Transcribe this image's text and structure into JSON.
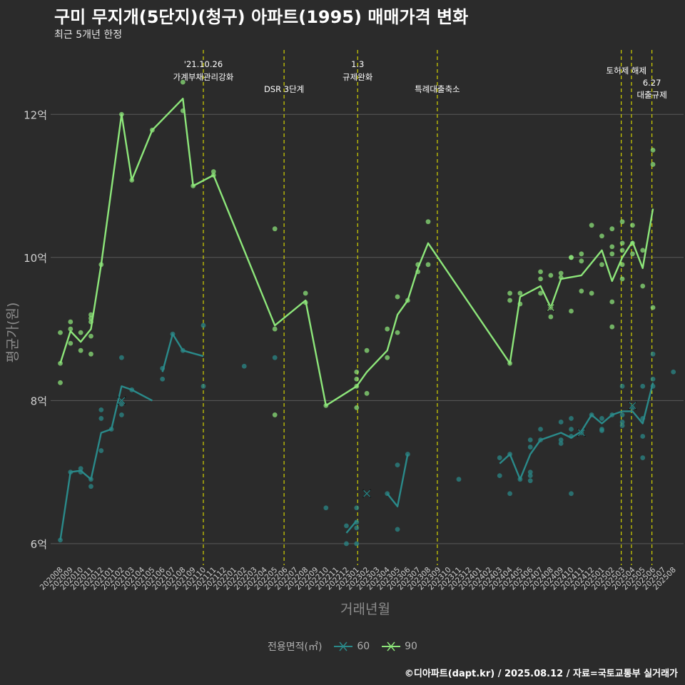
{
  "title": "구미 무지개(5단지)(청구) 아파트(1995) 매매가격 변화",
  "subtitle": "최근 5개년 한정",
  "caption": "©디아파트(dapt.kr) / 2025.08.12 / 자료=국토교통부 실거래가",
  "colors": {
    "background": "#2b2b2b",
    "grid": "#5a5a5a",
    "event": "#d4d400",
    "s60": "#2a8a8a",
    "s90": "#8de67a"
  },
  "chart_data": {
    "type": "line",
    "xlabel": "거래년월",
    "ylabel": "평균가(원)",
    "ylim": [
      5.7,
      12.9
    ],
    "yticks": [
      6,
      8,
      10,
      12
    ],
    "ytick_labels": [
      "6억",
      "8억",
      "10억",
      "12억"
    ],
    "x": [
      "202008",
      "202009",
      "202010",
      "202011",
      "202012",
      "202101",
      "202102",
      "202103",
      "202104",
      "202105",
      "202106",
      "202107",
      "202108",
      "202109",
      "202110",
      "202111",
      "202112",
      "202201",
      "202202",
      "202203",
      "202204",
      "202205",
      "202206",
      "202207",
      "202208",
      "202209",
      "202210",
      "202211",
      "202212",
      "202301",
      "202302",
      "202303",
      "202304",
      "202305",
      "202306",
      "202307",
      "202308",
      "202309",
      "202310",
      "202311",
      "202312",
      "202401",
      "202402",
      "202403",
      "202404",
      "202405",
      "202406",
      "202407",
      "202408",
      "202409",
      "202410",
      "202411",
      "202412",
      "202501",
      "202502",
      "202503",
      "202504",
      "202505",
      "202506",
      "202507",
      "202508"
    ],
    "legend_title": "전용면적(㎡)",
    "events": [
      {
        "x": 14,
        "lines": [
          "'21.10.26",
          "가계부채관리강화"
        ]
      },
      {
        "x": 21.9,
        "lines": [
          "DSR 3단계"
        ]
      },
      {
        "x": 29.1,
        "lines": [
          "1.3",
          "규제완화"
        ]
      },
      {
        "x": 36.9,
        "lines": [
          "특례대출축소"
        ]
      },
      {
        "x": 54.9,
        "lines": [
          "토허제 해제"
        ]
      },
      {
        "x": 55.9,
        "lines": []
      },
      {
        "x": 57.9,
        "lines": [
          "6.27",
          "대출규제"
        ]
      }
    ],
    "series": [
      {
        "name": "60",
        "segments": [
          [
            [
              0,
              6.05
            ],
            [
              1,
              7.0
            ],
            [
              2,
              7.02
            ],
            [
              3,
              6.9
            ],
            [
              4,
              7.55
            ],
            [
              5,
              7.6
            ],
            [
              6,
              8.2
            ],
            [
              7,
              8.15
            ],
            [
              9,
              8.0
            ]
          ],
          [
            [
              10,
              8.4
            ],
            [
              11,
              8.93
            ],
            [
              12,
              8.7
            ],
            [
              14,
              8.62
            ]
          ],
          [
            [
              28,
              6.15
            ],
            [
              29,
              6.32
            ]
          ],
          [
            [
              32,
              6.7
            ],
            [
              33,
              6.52
            ],
            [
              34,
              7.25
            ]
          ],
          [
            [
              43,
              7.12
            ],
            [
              44,
              7.25
            ],
            [
              45,
              6.9
            ],
            [
              46,
              7.25
            ],
            [
              47,
              7.45
            ],
            [
              49,
              7.55
            ],
            [
              50,
              7.48
            ],
            [
              51,
              7.57
            ],
            [
              52,
              7.8
            ],
            [
              53,
              7.68
            ],
            [
              54,
              7.8
            ],
            [
              55,
              7.85
            ],
            [
              56,
              7.85
            ],
            [
              57,
              7.68
            ],
            [
              58,
              8.25
            ]
          ]
        ],
        "points": [
          [
            0,
            6.05
          ],
          [
            1,
            7.0
          ],
          [
            2,
            7.0
          ],
          [
            2,
            7.05
          ],
          [
            3,
            6.9
          ],
          [
            3,
            6.8
          ],
          [
            4,
            7.3
          ],
          [
            4,
            7.75
          ],
          [
            4,
            7.87
          ],
          [
            5,
            7.6
          ],
          [
            6,
            7.8
          ],
          [
            6,
            7.95
          ],
          [
            6,
            8.6
          ],
          [
            7,
            8.15
          ],
          [
            10,
            8.3
          ],
          [
            10,
            8.45
          ],
          [
            11,
            8.93
          ],
          [
            12,
            8.7
          ],
          [
            14,
            9.05
          ],
          [
            14,
            8.2
          ],
          [
            18,
            8.48
          ],
          [
            21,
            8.6
          ],
          [
            26,
            6.5
          ],
          [
            28,
            6.0
          ],
          [
            28,
            6.25
          ],
          [
            29,
            6.5
          ],
          [
            29,
            6.3
          ],
          [
            29,
            6.0
          ],
          [
            29,
            6.22
          ],
          [
            32,
            6.7
          ],
          [
            33,
            6.2
          ],
          [
            33,
            7.1
          ],
          [
            34,
            7.25
          ],
          [
            39,
            6.9
          ],
          [
            43,
            7.2
          ],
          [
            43,
            6.95
          ],
          [
            44,
            7.25
          ],
          [
            44,
            6.7
          ],
          [
            45,
            6.9
          ],
          [
            46,
            7.45
          ],
          [
            46,
            7.35
          ],
          [
            46,
            7.0
          ],
          [
            46,
            6.95
          ],
          [
            46,
            6.88
          ],
          [
            47,
            7.45
          ],
          [
            47,
            7.6
          ],
          [
            49,
            7.45
          ],
          [
            49,
            7.4
          ],
          [
            49,
            7.7
          ],
          [
            50,
            6.7
          ],
          [
            50,
            7.75
          ],
          [
            50,
            7.6
          ],
          [
            50,
            7.5
          ],
          [
            51,
            7.55
          ],
          [
            52,
            7.8
          ],
          [
            53,
            7.6
          ],
          [
            53,
            7.58
          ],
          [
            53,
            7.75
          ],
          [
            54,
            7.8
          ],
          [
            55,
            7.65
          ],
          [
            55,
            7.7
          ],
          [
            55,
            8.2
          ],
          [
            55,
            7.8
          ],
          [
            56,
            7.9
          ],
          [
            57,
            7.2
          ],
          [
            57,
            7.5
          ],
          [
            57,
            7.75
          ],
          [
            57,
            8.2
          ],
          [
            58,
            8.65
          ],
          [
            58,
            8.3
          ],
          [
            58,
            8.2
          ],
          [
            60,
            8.4
          ]
        ],
        "markers": [
          [
            6,
            8.0
          ],
          [
            30,
            6.7
          ],
          [
            51,
            7.55
          ],
          [
            56,
            7.93
          ]
        ]
      },
      {
        "name": "90",
        "segments": [
          [
            [
              0,
              8.52
            ],
            [
              1,
              8.97
            ],
            [
              2,
              8.82
            ],
            [
              3,
              9.0
            ],
            [
              4,
              9.9
            ],
            [
              6,
              12.0
            ],
            [
              7,
              11.08
            ],
            [
              9,
              11.78
            ],
            [
              12,
              12.22
            ],
            [
              13,
              11.0
            ],
            [
              15,
              11.15
            ],
            [
              21,
              9.05
            ],
            [
              24,
              9.4
            ],
            [
              26,
              7.93
            ],
            [
              29,
              8.2
            ],
            [
              30,
              8.4
            ],
            [
              32,
              8.7
            ],
            [
              33,
              9.2
            ],
            [
              34,
              9.4
            ],
            [
              35,
              9.85
            ],
            [
              36,
              10.2
            ],
            [
              44,
              8.52
            ],
            [
              45,
              9.45
            ],
            [
              47,
              9.6
            ],
            [
              48,
              9.3
            ],
            [
              49,
              9.7
            ],
            [
              51,
              9.75
            ],
            [
              53,
              10.1
            ],
            [
              54,
              9.67
            ],
            [
              55,
              10.0
            ],
            [
              56,
              10.22
            ],
            [
              57,
              9.85
            ],
            [
              58,
              10.68
            ]
          ]
        ],
        "points": [
          [
            0,
            8.95
          ],
          [
            0,
            8.25
          ],
          [
            0,
            8.52
          ],
          [
            1,
            9.1
          ],
          [
            1,
            8.8
          ],
          [
            1,
            9.0
          ],
          [
            2,
            8.95
          ],
          [
            2,
            8.7
          ],
          [
            3,
            9.2
          ],
          [
            3,
            9.15
          ],
          [
            3,
            8.9
          ],
          [
            3,
            8.65
          ],
          [
            3,
            9.1
          ],
          [
            4,
            9.9
          ],
          [
            6,
            12.0
          ],
          [
            7,
            11.08
          ],
          [
            9,
            11.78
          ],
          [
            12,
            12.45
          ],
          [
            12,
            12.05
          ],
          [
            13,
            11.0
          ],
          [
            15,
            11.2
          ],
          [
            15,
            11.15
          ],
          [
            21,
            10.4
          ],
          [
            21,
            9.0
          ],
          [
            21,
            7.8
          ],
          [
            24,
            9.5
          ],
          [
            24,
            9.37
          ],
          [
            26,
            7.93
          ],
          [
            29,
            8.4
          ],
          [
            29,
            8.3
          ],
          [
            29,
            8.2
          ],
          [
            29,
            7.9
          ],
          [
            30,
            8.7
          ],
          [
            30,
            8.1
          ],
          [
            32,
            9.0
          ],
          [
            32,
            8.6
          ],
          [
            33,
            9.45
          ],
          [
            33,
            8.95
          ],
          [
            34,
            9.4
          ],
          [
            35,
            9.8
          ],
          [
            35,
            9.9
          ],
          [
            36,
            10.5
          ],
          [
            36,
            9.9
          ],
          [
            44,
            9.5
          ],
          [
            44,
            9.4
          ],
          [
            44,
            8.52
          ],
          [
            45,
            9.5
          ],
          [
            45,
            9.35
          ],
          [
            47,
            9.8
          ],
          [
            47,
            9.7
          ],
          [
            47,
            9.5
          ],
          [
            48,
            9.17
          ],
          [
            48,
            9.75
          ],
          [
            48,
            9.3
          ],
          [
            49,
            9.78
          ],
          [
            49,
            9.72
          ],
          [
            50,
            9.25
          ],
          [
            50,
            10.0
          ],
          [
            50,
            10.0
          ],
          [
            51,
            10.05
          ],
          [
            51,
            9.95
          ],
          [
            51,
            9.53
          ],
          [
            52,
            10.45
          ],
          [
            52,
            9.5
          ],
          [
            53,
            10.3
          ],
          [
            53,
            9.9
          ],
          [
            54,
            10.4
          ],
          [
            54,
            10.15
          ],
          [
            54,
            10.05
          ],
          [
            54,
            9.38
          ],
          [
            54,
            9.03
          ],
          [
            55,
            10.5
          ],
          [
            55,
            10.2
          ],
          [
            55,
            10.1
          ],
          [
            55,
            9.9
          ],
          [
            55,
            9.7
          ],
          [
            56,
            10.45
          ],
          [
            56,
            10.2
          ],
          [
            56,
            10.05
          ],
          [
            57,
            10.1
          ],
          [
            57,
            9.6
          ],
          [
            58,
            11.5
          ],
          [
            58,
            11.3
          ],
          [
            58,
            9.3
          ]
        ],
        "markers": [
          [
            48,
            9.3
          ]
        ]
      }
    ]
  }
}
